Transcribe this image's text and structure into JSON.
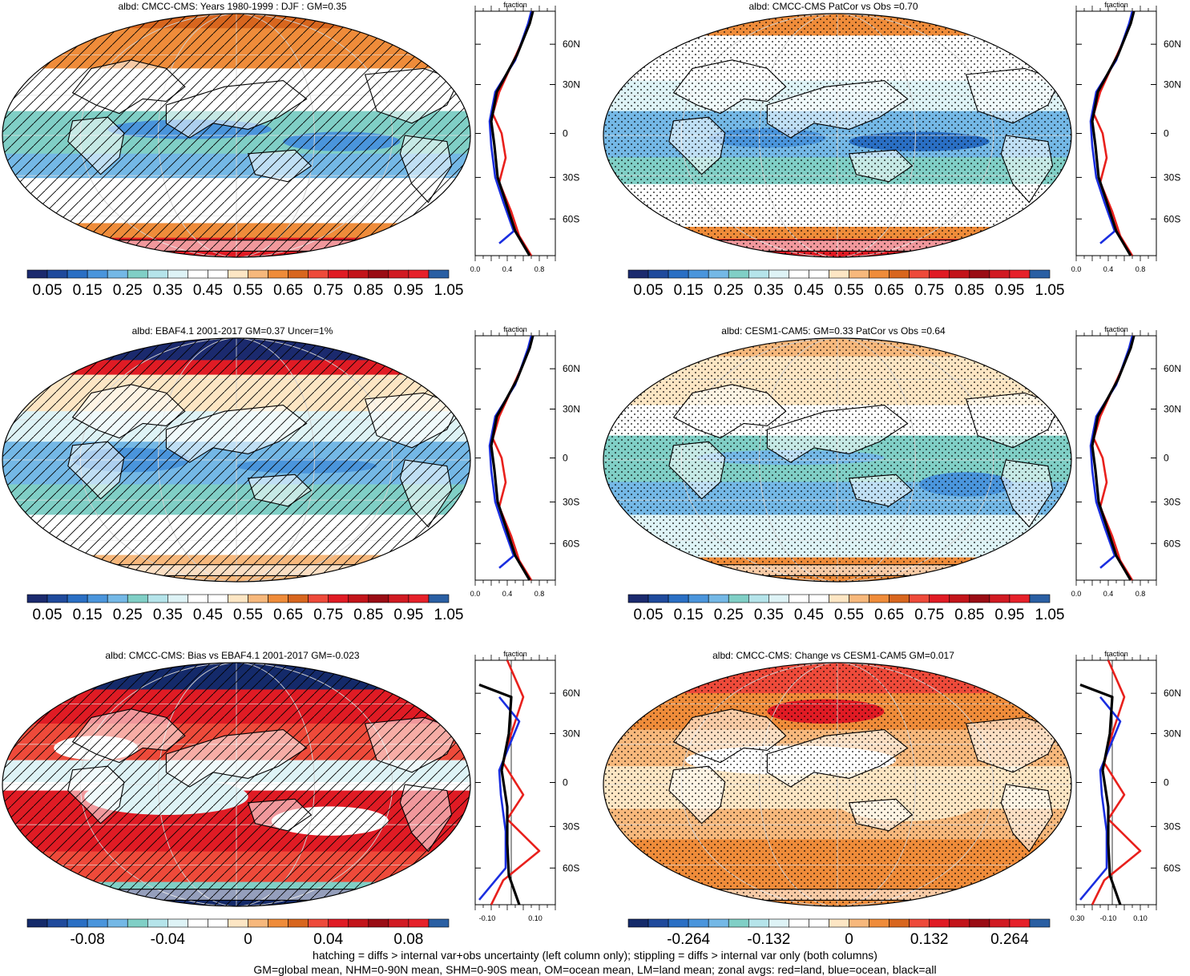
{
  "panels": [
    {
      "title": "albd: CMCC-CMS: Years 1980-1999 : DJF : GM=0.35",
      "palette": "seq",
      "overlay": "hatch",
      "cbar_labels": [
        "0.05",
        "0.15",
        "0.25",
        "0.35",
        "0.45",
        "0.55",
        "0.65",
        "0.75",
        "0.85",
        "0.95",
        "1.05"
      ],
      "zonal": {
        "header": "fraction",
        "xticks": [
          "0.0",
          "0.4",
          "0.8"
        ],
        "yticks": [
          "60N",
          "30N",
          "0",
          "30S",
          "60S"
        ]
      }
    },
    {
      "title": "albd: CMCC-CMS PatCor vs Obs =0.70",
      "palette": "seq",
      "overlay": "stipple",
      "cbar_labels": [
        "0.05",
        "0.15",
        "0.25",
        "0.35",
        "0.45",
        "0.55",
        "0.65",
        "0.75",
        "0.85",
        "0.95",
        "1.05"
      ],
      "zonal": {
        "header": "fraction",
        "xticks": [
          "0.0",
          "0.4",
          "0.8"
        ],
        "yticks": [
          "60N",
          "30N",
          "0",
          "30S",
          "60S"
        ]
      }
    },
    {
      "title": "albd: EBAF4.1 2001-2017 GM=0.37 Uncer=1%",
      "palette": "seq",
      "overlay": "hatch",
      "cbar_labels": [
        "0.05",
        "0.15",
        "0.25",
        "0.35",
        "0.45",
        "0.55",
        "0.65",
        "0.75",
        "0.85",
        "0.95",
        "1.05"
      ],
      "zonal": {
        "header": "fraction",
        "xticks": [
          "0.0",
          "0.4",
          "0.8"
        ],
        "yticks": [
          "60N",
          "30N",
          "0",
          "30S",
          "60S"
        ]
      }
    },
    {
      "title": "albd: CESM1-CAM5: GM=0.33 PatCor vs Obs =0.64",
      "palette": "seq",
      "overlay": "stipple",
      "cbar_labels": [
        "0.05",
        "0.15",
        "0.25",
        "0.35",
        "0.45",
        "0.55",
        "0.65",
        "0.75",
        "0.85",
        "0.95",
        "1.05"
      ],
      "zonal": {
        "header": "fraction",
        "xticks": [
          "0.0",
          "0.4",
          "0.8"
        ],
        "yticks": [
          "60N",
          "30N",
          "0",
          "30S",
          "60S"
        ]
      }
    },
    {
      "title": "albd: CMCC-CMS: Bias vs EBAF4.1 2001-2017 GM=-0.023",
      "palette": "div",
      "overlay": "hatch",
      "cbar_labels": [
        "-0.08",
        "-0.04",
        "0",
        "0.04",
        "0.08"
      ],
      "zonal": {
        "header": "fraction",
        "xticks": [
          "-0.10",
          "0.10"
        ],
        "yticks": [
          "60N",
          "30N",
          "0",
          "30S",
          "60S"
        ]
      }
    },
    {
      "title": "albd: CMCC-CMS: Change vs CESM1-CAM5 GM=0.017",
      "palette": "div",
      "overlay": "stipple",
      "cbar_labels": [
        "-0.264",
        "-0.132",
        "0",
        "0.132",
        "0.264"
      ],
      "zonal": {
        "header": "fraction",
        "xticks": [
          "-0.30",
          "-0.10",
          "0.10"
        ],
        "yticks": [
          "60N",
          "30N",
          "0",
          "30S",
          "60S"
        ]
      }
    }
  ],
  "palettes": {
    "seq": [
      "#1b2a6e",
      "#1f4a9c",
      "#2a6fc4",
      "#4a95dc",
      "#74b8e6",
      "#80cfc6",
      "#b5e4ea",
      "#def3f6",
      "#ffffff",
      "#ffffff",
      "#fde6c4",
      "#f7b87c",
      "#ef8c3a",
      "#d8661e",
      "#ee4a3a",
      "#e01b24",
      "#c3141a",
      "#9a0c14",
      "#d11a22",
      "#e6212a",
      "#2a5fa3"
    ],
    "div": [
      "#142a6a",
      "#1f4a9c",
      "#2a6fc4",
      "#4a95dc",
      "#74b8e6",
      "#80cfc6",
      "#b5e4ea",
      "#def3f6",
      "#ffffff",
      "#ffffff",
      "#fde6c4",
      "#f7b87c",
      "#ef8c3a",
      "#d8661e",
      "#ee4a3a",
      "#e01b24",
      "#c3141a",
      "#9a0c14",
      "#d11a22",
      "#e6212a",
      "#2a5fa3"
    ]
  },
  "zonal_colors": {
    "land": "#e8201c",
    "ocean": "#1a2ee0",
    "all": "#000000"
  },
  "footnote": {
    "line1": "hatching = diffs > internal var+obs uncertainty (left column only); stippling = diffs > internal var only (both columns)",
    "line2": "GM=global mean, NHM=0-90N mean, SHM=0-90S mean, OM=ocean mean, LM=land mean; zonal avgs: red=land, blue=ocean, black=all"
  }
}
